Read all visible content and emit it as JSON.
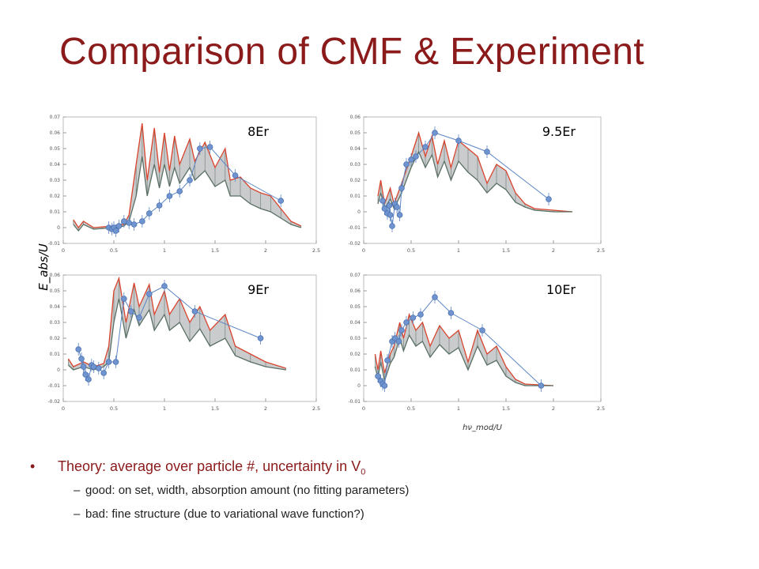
{
  "title": "Comparison of CMF & Experiment",
  "figure": {
    "ylabel": "E_abs/U",
    "xlabel": "hν_mod/U"
  },
  "chart_data": [
    {
      "type": "line",
      "label": "8Er",
      "xlim": [
        0,
        2.5
      ],
      "ylim": [
        -0.01,
        0.07
      ],
      "yticks": [
        "-0.01",
        "0",
        "0.01",
        "0.02",
        "0.03",
        "0.04",
        "0.05",
        "0.06",
        "0.07"
      ],
      "xticks": [
        "0",
        "0.5",
        "1",
        "1.5",
        "2",
        "2.5"
      ],
      "theory_upper": [
        [
          0.1,
          0.005
        ],
        [
          0.15,
          0
        ],
        [
          0.2,
          0.004
        ],
        [
          0.3,
          0
        ],
        [
          0.5,
          0.001
        ],
        [
          0.6,
          0.002
        ],
        [
          0.65,
          0.008
        ],
        [
          0.72,
          0.04
        ],
        [
          0.78,
          0.066
        ],
        [
          0.83,
          0.03
        ],
        [
          0.9,
          0.063
        ],
        [
          0.95,
          0.035
        ],
        [
          1.0,
          0.06
        ],
        [
          1.05,
          0.036
        ],
        [
          1.1,
          0.058
        ],
        [
          1.15,
          0.04
        ],
        [
          1.25,
          0.056
        ],
        [
          1.3,
          0.042
        ],
        [
          1.4,
          0.054
        ],
        [
          1.5,
          0.038
        ],
        [
          1.6,
          0.05
        ],
        [
          1.65,
          0.03
        ],
        [
          1.75,
          0.032
        ],
        [
          1.85,
          0.025
        ],
        [
          1.95,
          0.022
        ],
        [
          2.05,
          0.02
        ],
        [
          2.15,
          0.012
        ],
        [
          2.25,
          0.004
        ],
        [
          2.35,
          0.001
        ]
      ],
      "theory_lower": [
        [
          0.1,
          0.002
        ],
        [
          0.15,
          -0.002
        ],
        [
          0.2,
          0.002
        ],
        [
          0.3,
          -0.001
        ],
        [
          0.5,
          0
        ],
        [
          0.6,
          0.001
        ],
        [
          0.65,
          0.004
        ],
        [
          0.72,
          0.02
        ],
        [
          0.78,
          0.045
        ],
        [
          0.83,
          0.02
        ],
        [
          0.9,
          0.04
        ],
        [
          0.95,
          0.025
        ],
        [
          1.0,
          0.04
        ],
        [
          1.05,
          0.026
        ],
        [
          1.1,
          0.038
        ],
        [
          1.15,
          0.028
        ],
        [
          1.25,
          0.038
        ],
        [
          1.3,
          0.03
        ],
        [
          1.4,
          0.036
        ],
        [
          1.5,
          0.026
        ],
        [
          1.6,
          0.03
        ],
        [
          1.65,
          0.02
        ],
        [
          1.75,
          0.02
        ],
        [
          1.85,
          0.015
        ],
        [
          1.95,
          0.012
        ],
        [
          2.05,
          0.01
        ],
        [
          2.15,
          0.006
        ],
        [
          2.25,
          0.002
        ],
        [
          2.35,
          0
        ]
      ],
      "experiment": {
        "x": [
          0.45,
          0.48,
          0.5,
          0.52,
          0.55,
          0.6,
          0.65,
          0.7,
          0.78,
          0.85,
          0.95,
          1.05,
          1.15,
          1.25,
          1.35,
          1.45,
          1.7,
          2.15
        ],
        "y": [
          0,
          -0.001,
          0,
          -0.002,
          0.001,
          0.004,
          0.003,
          0.002,
          0.004,
          0.009,
          0.014,
          0.02,
          0.023,
          0.03,
          0.05,
          0.051,
          0.033,
          0.017
        ]
      }
    },
    {
      "type": "line",
      "label": "9.5Er",
      "xlim": [
        0,
        2.5
      ],
      "ylim": [
        -0.02,
        0.06
      ],
      "yticks": [
        "-0.02",
        "-0.01",
        "0",
        "0.01",
        "0.02",
        "0.03",
        "0.04",
        "0.05",
        "0.06"
      ],
      "xticks": [
        "0",
        "0.5",
        "1",
        "1.5",
        "2",
        "2.5"
      ],
      "theory_upper": [
        [
          0.15,
          0.01
        ],
        [
          0.18,
          0.02
        ],
        [
          0.22,
          0.005
        ],
        [
          0.28,
          0.015
        ],
        [
          0.32,
          0.005
        ],
        [
          0.4,
          0.018
        ],
        [
          0.5,
          0.035
        ],
        [
          0.58,
          0.05
        ],
        [
          0.65,
          0.035
        ],
        [
          0.72,
          0.048
        ],
        [
          0.78,
          0.03
        ],
        [
          0.85,
          0.045
        ],
        [
          0.92,
          0.028
        ],
        [
          1.0,
          0.045
        ],
        [
          1.1,
          0.04
        ],
        [
          1.2,
          0.035
        ],
        [
          1.3,
          0.018
        ],
        [
          1.4,
          0.03
        ],
        [
          1.5,
          0.026
        ],
        [
          1.6,
          0.012
        ],
        [
          1.7,
          0.005
        ],
        [
          1.8,
          0.002
        ],
        [
          2.0,
          0.001
        ],
        [
          2.2,
          0
        ]
      ],
      "theory_lower": [
        [
          0.15,
          0.005
        ],
        [
          0.18,
          0.012
        ],
        [
          0.22,
          0.002
        ],
        [
          0.28,
          0.008
        ],
        [
          0.32,
          0.002
        ],
        [
          0.4,
          0.012
        ],
        [
          0.5,
          0.028
        ],
        [
          0.58,
          0.038
        ],
        [
          0.65,
          0.028
        ],
        [
          0.72,
          0.036
        ],
        [
          0.78,
          0.022
        ],
        [
          0.85,
          0.032
        ],
        [
          0.92,
          0.02
        ],
        [
          1.0,
          0.032
        ],
        [
          1.1,
          0.025
        ],
        [
          1.2,
          0.02
        ],
        [
          1.3,
          0.012
        ],
        [
          1.4,
          0.018
        ],
        [
          1.5,
          0.014
        ],
        [
          1.6,
          0.006
        ],
        [
          1.7,
          0.003
        ],
        [
          1.8,
          0.001
        ],
        [
          2.0,
          0
        ],
        [
          2.2,
          0
        ]
      ],
      "experiment": {
        "x": [
          0.2,
          0.22,
          0.25,
          0.27,
          0.28,
          0.3,
          0.33,
          0.35,
          0.38,
          0.4,
          0.45,
          0.5,
          0.55,
          0.65,
          0.75,
          1.0,
          1.3,
          1.95
        ],
        "y": [
          0.007,
          0.002,
          -0.001,
          0.004,
          -0.002,
          -0.009,
          0.005,
          0.003,
          -0.002,
          0.015,
          0.03,
          0.033,
          0.035,
          0.041,
          0.05,
          0.045,
          0.038,
          0.008
        ]
      }
    },
    {
      "type": "line",
      "label": "9Er",
      "xlim": [
        0,
        2.5
      ],
      "ylim": [
        -0.02,
        0.06
      ],
      "yticks": [
        "-0.02",
        "-0.01",
        "0",
        "0.01",
        "0.02",
        "0.03",
        "0.04",
        "0.05",
        "0.06"
      ],
      "xticks": [
        "0",
        "0.5",
        "1",
        "1.5",
        "2",
        "2.5"
      ],
      "theory_upper": [
        [
          0.05,
          0.007
        ],
        [
          0.1,
          0.002
        ],
        [
          0.2,
          0.005
        ],
        [
          0.3,
          0.002
        ],
        [
          0.4,
          0.004
        ],
        [
          0.45,
          0.015
        ],
        [
          0.5,
          0.05
        ],
        [
          0.55,
          0.058
        ],
        [
          0.62,
          0.03
        ],
        [
          0.7,
          0.055
        ],
        [
          0.75,
          0.04
        ],
        [
          0.85,
          0.054
        ],
        [
          0.9,
          0.035
        ],
        [
          1.0,
          0.05
        ],
        [
          1.05,
          0.035
        ],
        [
          1.15,
          0.045
        ],
        [
          1.25,
          0.03
        ],
        [
          1.35,
          0.04
        ],
        [
          1.45,
          0.025
        ],
        [
          1.6,
          0.035
        ],
        [
          1.7,
          0.015
        ],
        [
          1.85,
          0.01
        ],
        [
          2.0,
          0.005
        ],
        [
          2.2,
          0.001
        ]
      ],
      "theory_lower": [
        [
          0.05,
          0.003
        ],
        [
          0.1,
          0
        ],
        [
          0.2,
          0.002
        ],
        [
          0.3,
          0
        ],
        [
          0.4,
          0.002
        ],
        [
          0.45,
          0.005
        ],
        [
          0.5,
          0.03
        ],
        [
          0.55,
          0.045
        ],
        [
          0.62,
          0.02
        ],
        [
          0.7,
          0.038
        ],
        [
          0.75,
          0.028
        ],
        [
          0.85,
          0.038
        ],
        [
          0.9,
          0.025
        ],
        [
          1.0,
          0.035
        ],
        [
          1.05,
          0.025
        ],
        [
          1.15,
          0.03
        ],
        [
          1.25,
          0.018
        ],
        [
          1.35,
          0.026
        ],
        [
          1.45,
          0.015
        ],
        [
          1.6,
          0.02
        ],
        [
          1.7,
          0.009
        ],
        [
          1.85,
          0.005
        ],
        [
          2.0,
          0.002
        ],
        [
          2.2,
          0
        ]
      ],
      "experiment": {
        "x": [
          0.15,
          0.18,
          0.2,
          0.22,
          0.25,
          0.28,
          0.3,
          0.35,
          0.4,
          0.45,
          0.52,
          0.6,
          0.67,
          0.75,
          0.85,
          1.0,
          1.3,
          1.95
        ],
        "y": [
          0.013,
          0.007,
          0.002,
          -0.003,
          -0.006,
          0.003,
          0.002,
          0.001,
          -0.002,
          0.005,
          0.005,
          0.045,
          0.037,
          0.033,
          0.048,
          0.053,
          0.037,
          0.02
        ]
      }
    },
    {
      "type": "line",
      "label": "10Er",
      "xlim": [
        0,
        2.5
      ],
      "ylim": [
        -0.01,
        0.07
      ],
      "yticks": [
        "-0.01",
        "0",
        "0.01",
        "0.02",
        "0.03",
        "0.04",
        "0.05",
        "0.06",
        "0.07"
      ],
      "xticks": [
        "0",
        "0.5",
        "1",
        "1.5",
        "2",
        "2.5"
      ],
      "theory_upper": [
        [
          0.12,
          0.02
        ],
        [
          0.15,
          0.01
        ],
        [
          0.18,
          0.022
        ],
        [
          0.22,
          0.008
        ],
        [
          0.28,
          0.02
        ],
        [
          0.32,
          0.025
        ],
        [
          0.38,
          0.04
        ],
        [
          0.42,
          0.03
        ],
        [
          0.48,
          0.045
        ],
        [
          0.55,
          0.035
        ],
        [
          0.62,
          0.04
        ],
        [
          0.7,
          0.025
        ],
        [
          0.8,
          0.038
        ],
        [
          0.9,
          0.03
        ],
        [
          1.0,
          0.035
        ],
        [
          1.1,
          0.015
        ],
        [
          1.2,
          0.035
        ],
        [
          1.3,
          0.02
        ],
        [
          1.4,
          0.025
        ],
        [
          1.5,
          0.012
        ],
        [
          1.6,
          0.004
        ],
        [
          1.7,
          0.001
        ],
        [
          2.0,
          0
        ]
      ],
      "theory_lower": [
        [
          0.12,
          0.012
        ],
        [
          0.15,
          0.005
        ],
        [
          0.18,
          0.015
        ],
        [
          0.22,
          0.003
        ],
        [
          0.28,
          0.014
        ],
        [
          0.32,
          0.018
        ],
        [
          0.38,
          0.03
        ],
        [
          0.42,
          0.022
        ],
        [
          0.48,
          0.032
        ],
        [
          0.55,
          0.025
        ],
        [
          0.62,
          0.028
        ],
        [
          0.7,
          0.018
        ],
        [
          0.8,
          0.026
        ],
        [
          0.9,
          0.02
        ],
        [
          1.0,
          0.024
        ],
        [
          1.1,
          0.01
        ],
        [
          1.2,
          0.025
        ],
        [
          1.3,
          0.013
        ],
        [
          1.4,
          0.016
        ],
        [
          1.5,
          0.006
        ],
        [
          1.6,
          0.002
        ],
        [
          1.7,
          0
        ],
        [
          2.0,
          0
        ]
      ],
      "experiment": {
        "x": [
          0.15,
          0.18,
          0.2,
          0.22,
          0.25,
          0.3,
          0.33,
          0.37,
          0.4,
          0.45,
          0.52,
          0.6,
          0.75,
          0.92,
          1.25,
          1.87
        ],
        "y": [
          0.006,
          0.003,
          0.001,
          0,
          0.016,
          0.028,
          0.03,
          0.028,
          0.035,
          0.04,
          0.043,
          0.045,
          0.056,
          0.046,
          0.035,
          0
        ]
      }
    }
  ],
  "bullets": {
    "main_prefix": "Theory: average over particle #, uncertainty in V",
    "main_sub": "0",
    "sub1": "good: on set, width, absorption amount (no fitting parameters)",
    "sub2": "bad: fine structure (due to variational wave function?)"
  }
}
